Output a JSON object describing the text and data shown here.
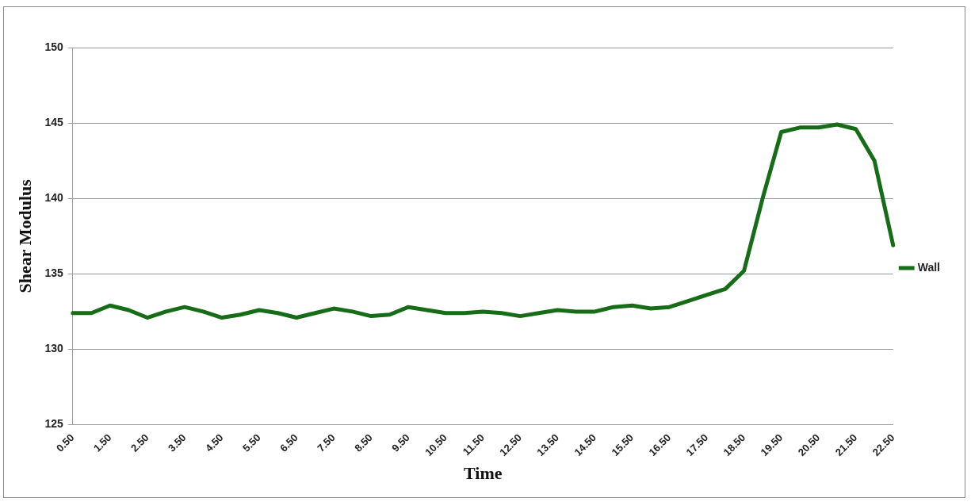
{
  "chart_data": {
    "type": "line",
    "xlabel": "Time",
    "ylabel": "Shear Modulus",
    "categories": [
      "0.50",
      null,
      "1.50",
      null,
      "2.50",
      null,
      "3.50",
      null,
      "4.50",
      null,
      "5.50",
      null,
      "6.50",
      null,
      "7.50",
      null,
      "8.50",
      null,
      "9.50",
      null,
      "10.50",
      null,
      "11.50",
      null,
      "12.50",
      null,
      "13.50",
      null,
      "14.50",
      null,
      "15.50",
      null,
      "16.50",
      null,
      "17.50",
      null,
      "18.50",
      null,
      "19.50",
      null,
      "20.50",
      null,
      "21.50",
      null,
      "22.50"
    ],
    "series": [
      {
        "name": "Wall",
        "color": "#176d17",
        "values": [
          132.4,
          132.4,
          132.9,
          132.6,
          132.1,
          132.5,
          132.8,
          132.5,
          132.1,
          132.3,
          132.6,
          132.4,
          132.1,
          132.4,
          132.7,
          132.5,
          132.2,
          132.3,
          132.8,
          132.6,
          132.4,
          132.4,
          132.5,
          132.4,
          132.2,
          132.4,
          132.6,
          132.5,
          132.5,
          132.8,
          132.9,
          132.7,
          132.8,
          133.2,
          133.6,
          134.0,
          135.2,
          140.0,
          144.4,
          144.7,
          144.7,
          144.9,
          144.6,
          142.5,
          136.9
        ]
      }
    ],
    "ylim": [
      125,
      150
    ],
    "yticks": [
      125,
      130,
      135,
      140,
      145,
      150
    ],
    "grid": "y",
    "legend": "right",
    "marker": "none",
    "line_style": "solid"
  }
}
